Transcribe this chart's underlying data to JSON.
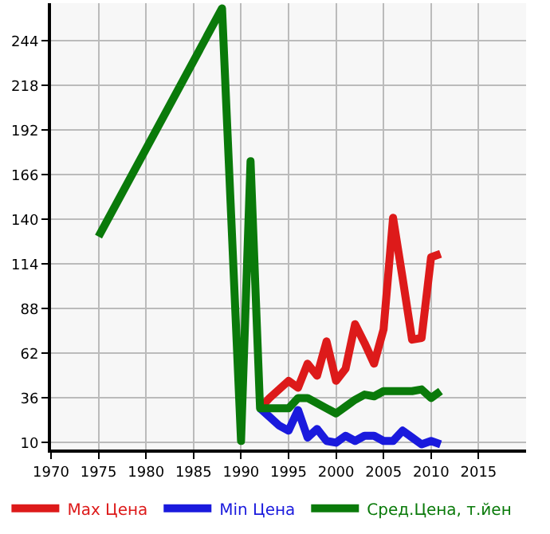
{
  "chart_data": {
    "type": "line",
    "xlim": [
      1970,
      2020
    ],
    "xticks": [
      1970,
      1975,
      1980,
      1985,
      1990,
      1995,
      2000,
      2005,
      2010,
      2015
    ],
    "ylim": [
      6,
      266
    ],
    "yticks": [
      10,
      36,
      62,
      88,
      114,
      140,
      166,
      192,
      218,
      244
    ],
    "grid": true,
    "legend": "bottom",
    "marker": "none",
    "line_style": "solid",
    "series": [
      {
        "name": "Max Цена",
        "color": "#dd1a1a",
        "x": [
          1992,
          1993,
          1994,
          1995,
          1996,
          1997,
          1998,
          1999,
          2000,
          2001,
          2002,
          2003,
          2004,
          2005,
          2006,
          2007,
          2008,
          2009,
          2010,
          2011
        ],
        "values": [
          30,
          36,
          41,
          46,
          42,
          56,
          49,
          69,
          46,
          53,
          79,
          68,
          56,
          76,
          141,
          106,
          70,
          71,
          118,
          120
        ]
      },
      {
        "name": "Min Цена",
        "color": "#1a1add",
        "x": [
          1992,
          1993,
          1994,
          1995,
          1996,
          1997,
          1998,
          1999,
          2000,
          2001,
          2002,
          2003,
          2004,
          2005,
          2006,
          2007,
          2008,
          2009,
          2010,
          2011
        ],
        "values": [
          30,
          25,
          20,
          17,
          29,
          13,
          18,
          11,
          10,
          14,
          11,
          14,
          14,
          11,
          11,
          17,
          13,
          9,
          11,
          9
        ]
      },
      {
        "name": "Сред.Цена, т.йен",
        "color": "#0a7a0a",
        "x": [
          1975,
          1988,
          1990,
          1991,
          1992,
          1993,
          1994,
          1995,
          1996,
          1997,
          1998,
          1999,
          2000,
          2001,
          2002,
          2003,
          2004,
          2005,
          2006,
          2007,
          2008,
          2009,
          2010,
          2011
        ],
        "values": [
          130,
          263,
          11,
          174,
          30,
          30,
          30,
          30,
          36,
          36,
          33,
          30,
          27,
          31,
          35,
          38,
          37,
          40,
          40,
          40,
          40,
          41,
          36,
          40
        ]
      }
    ]
  }
}
